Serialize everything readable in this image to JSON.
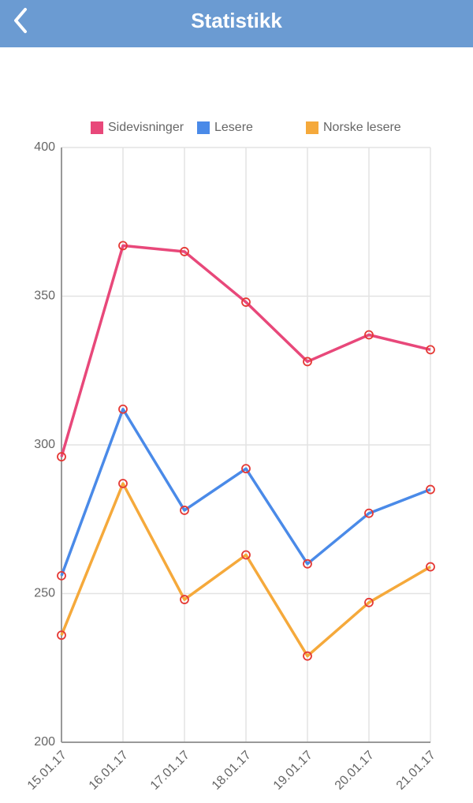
{
  "header": {
    "title": "Statistikk"
  },
  "chart_data": {
    "type": "line",
    "categories": [
      "15.01.17",
      "16.01.17",
      "17.01.17",
      "18.01.17",
      "19.01.17",
      "20.01.17",
      "21.01.17"
    ],
    "series": [
      {
        "name": "Sidevisninger",
        "color": "#e8487a",
        "values": [
          296,
          367,
          365,
          348,
          328,
          337,
          332
        ]
      },
      {
        "name": "Lesere",
        "color": "#4a8ae8",
        "values": [
          256,
          312,
          278,
          292,
          260,
          277,
          285
        ]
      },
      {
        "name": "Norske lesere",
        "color": "#f5a93b",
        "values": [
          236,
          287,
          248,
          263,
          229,
          247,
          259
        ]
      }
    ],
    "ylim": [
      200,
      400
    ],
    "yticks": [
      200,
      250,
      300,
      350,
      400
    ],
    "grid": true,
    "legend": "top"
  }
}
